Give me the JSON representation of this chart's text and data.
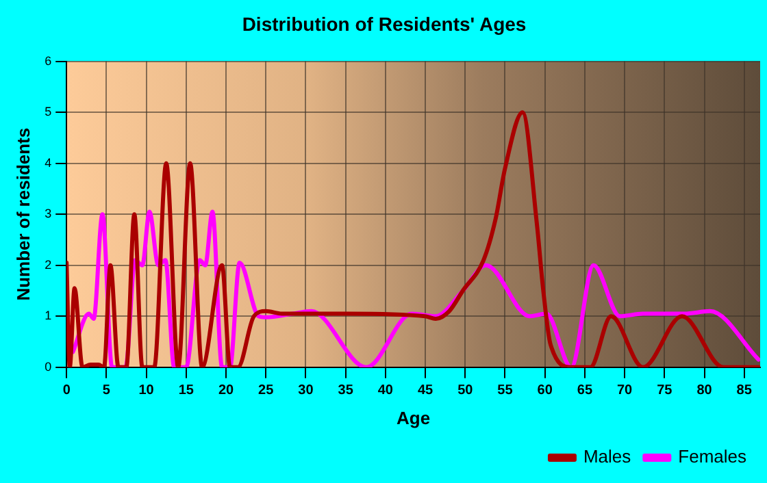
{
  "chart_data": {
    "type": "line",
    "title": "Distribution of Residents' Ages",
    "xlabel": "Age",
    "ylabel": "Number of residents",
    "xlim": [
      0,
      87
    ],
    "xticks": [
      0,
      5,
      10,
      15,
      20,
      25,
      30,
      35,
      40,
      45,
      50,
      55,
      60,
      65,
      70,
      75,
      80,
      85
    ],
    "ylim": [
      0,
      6
    ],
    "yticks": [
      0,
      1,
      2,
      3,
      4,
      5,
      6
    ],
    "grid": true,
    "legend": "bottom right",
    "marker": "none",
    "line_style": "solid",
    "series": [
      {
        "name": "Males",
        "color": "#aa0000",
        "x": [
          0,
          0.4,
          1,
          2,
          3,
          4,
          4.7,
          5.5,
          6.5,
          7.5,
          8.5,
          9.5,
          11,
          12.5,
          14,
          15.5,
          17,
          19.5,
          20.5,
          21.5,
          23.5,
          25,
          27,
          35,
          45,
          46.3,
          48,
          49.7,
          52.3,
          53.8,
          55,
          57.2,
          59,
          59.8,
          60.7,
          63.3,
          65.7,
          68.3,
          72.3,
          77.2,
          82.4,
          86.8
        ],
        "values": [
          2.05,
          0,
          1.55,
          0,
          0.05,
          0.05,
          0,
          2,
          0,
          0,
          3,
          0,
          0,
          4,
          0,
          4,
          0,
          2,
          0,
          0,
          1,
          1.1,
          1.05,
          1.05,
          1,
          0.95,
          1.1,
          1.5,
          2.1,
          2.9,
          3.9,
          5,
          2.8,
          1.5,
          0.45,
          0,
          0,
          1,
          0,
          1,
          0,
          0
        ]
      },
      {
        "name": "Females",
        "color": "#ff00ff",
        "x": [
          0.8,
          2.8,
          3.4,
          4.5,
          5.7,
          7.4,
          8.6,
          9.5,
          10.4,
          11.5,
          12.4,
          13.5,
          15,
          16.7,
          17.4,
          18.3,
          19.5,
          20.5,
          21.7,
          24.1,
          25,
          28.4,
          30.7,
          37.6,
          43.3,
          46.3,
          49.7,
          52.6,
          58.1,
          60.2,
          63.3,
          66.1,
          69.4,
          72.3,
          77.5,
          80.7,
          86.8
        ],
        "values": [
          0.3,
          1.05,
          0.95,
          3,
          0,
          0,
          2.1,
          2,
          3.05,
          2,
          2.1,
          0,
          0,
          2.1,
          2,
          3.05,
          0,
          0,
          2.05,
          1,
          0.98,
          1.05,
          1.1,
          0,
          1.05,
          1,
          1.5,
          2,
          1,
          1.05,
          0,
          2,
          1,
          1.05,
          1.05,
          1.1,
          0.15
        ]
      }
    ]
  }
}
